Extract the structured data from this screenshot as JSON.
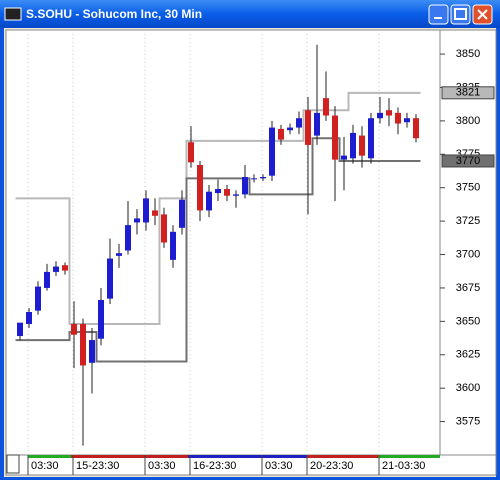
{
  "chart_data": {
    "type": "candlestick",
    "title": "S.SOHU - Sohucom Inc, 30 Min",
    "categories": [
      null,
      "03:30",
      null,
      null,
      null,
      null,
      "15-23:30",
      null,
      null,
      null,
      null,
      null,
      null,
      null,
      "03:30",
      null,
      null,
      null,
      null,
      "16-23:30",
      null,
      null,
      null,
      null,
      null,
      null,
      null,
      "03:30",
      null,
      null,
      null,
      null,
      "20-23:30",
      null,
      null,
      null,
      null,
      null,
      null,
      null,
      "21-03:30",
      null,
      null,
      null,
      null
    ],
    "open": [
      3639,
      3648,
      3658,
      3675,
      3687,
      3692,
      3648,
      3648,
      3619,
      3637,
      3667,
      3699,
      3703,
      3724,
      3724,
      3733,
      3730,
      3696,
      3720,
      3784,
      3767,
      3733,
      3746,
      3749,
      3744,
      3745,
      3757,
      3757,
      3759,
      3794,
      3793,
      3795,
      3808,
      3789,
      3817,
      3804,
      3771,
      3772,
      3789,
      3772,
      3802,
      3808,
      3806,
      3799,
      3802
    ],
    "high": [
      3649,
      3660,
      3680,
      3693,
      3695,
      3694,
      3665,
      3652,
      3645,
      3675,
      3712,
      3708,
      3740,
      3734,
      3748,
      3742,
      3735,
      3722,
      3748,
      3796,
      3770,
      3752,
      3756,
      3752,
      3748,
      3767,
      3760,
      3760,
      3800,
      3797,
      3798,
      3807,
      3818,
      3857,
      3837,
      3811,
      3788,
      3797,
      3796,
      3806,
      3818,
      3817,
      3810,
      3806,
      3805
    ],
    "low": [
      3636,
      3645,
      3655,
      3673,
      3684,
      3685,
      3615,
      3557,
      3596,
      3632,
      3663,
      3690,
      3700,
      3715,
      3718,
      3722,
      3705,
      3690,
      3715,
      3765,
      3725,
      3728,
      3740,
      3740,
      3735,
      3742,
      3754,
      3755,
      3755,
      3782,
      3790,
      3790,
      3730,
      3782,
      3800,
      3740,
      3748,
      3768,
      3765,
      3768,
      3798,
      3796,
      3790,
      3795,
      3784
    ],
    "close": [
      3649,
      3657,
      3676,
      3687,
      3691,
      3688,
      3640,
      3617,
      3636,
      3666,
      3697,
      3701,
      3722,
      3727,
      3742,
      3729,
      3709,
      3717,
      3741,
      3769,
      3733,
      3747,
      3749,
      3744,
      3745,
      3758,
      3757,
      3758,
      3795,
      3786,
      3795,
      3802,
      3782,
      3806,
      3804,
      3771,
      3774,
      3791,
      3774,
      3802,
      3806,
      3804,
      3798,
      3802,
      3787
    ],
    "up_color": "#1c1cd0",
    "down_color": "#d02020",
    "series": [
      {
        "color": "#b8b8b8",
        "values": [
          3742,
          3742,
          3742,
          3742,
          3742,
          3742,
          3648,
          3648,
          3648,
          3648,
          3648,
          3648,
          3648,
          3648,
          3648,
          3648,
          3742,
          3742,
          3742,
          3785,
          3785,
          3785,
          3785,
          3785,
          3785,
          3785,
          3785,
          3785,
          3785,
          3785,
          3785,
          3785,
          3808,
          3808,
          3808,
          3808,
          3808,
          3821,
          3821,
          3821,
          3821,
          3821,
          3821,
          3821,
          3821
        ]
      },
      {
        "color": "#707070",
        "values": [
          3636,
          3636,
          3636,
          3636,
          3636,
          3636,
          3642,
          3642,
          3642,
          3620,
          3620,
          3620,
          3620,
          3620,
          3620,
          3620,
          3620,
          3620,
          3620,
          3757,
          3757,
          3757,
          3757,
          3757,
          3757,
          3757,
          3745,
          3745,
          3745,
          3745,
          3745,
          3745,
          3745,
          3787,
          3787,
          3787,
          3770,
          3770,
          3770,
          3770,
          3770,
          3770,
          3770,
          3770,
          3770
        ]
      }
    ],
    "ylim": [
      3550,
      3868
    ],
    "yticks": [
      3575,
      3600,
      3625,
      3650,
      3675,
      3700,
      3725,
      3750,
      3775,
      3800,
      3825,
      3850
    ]
  }
}
